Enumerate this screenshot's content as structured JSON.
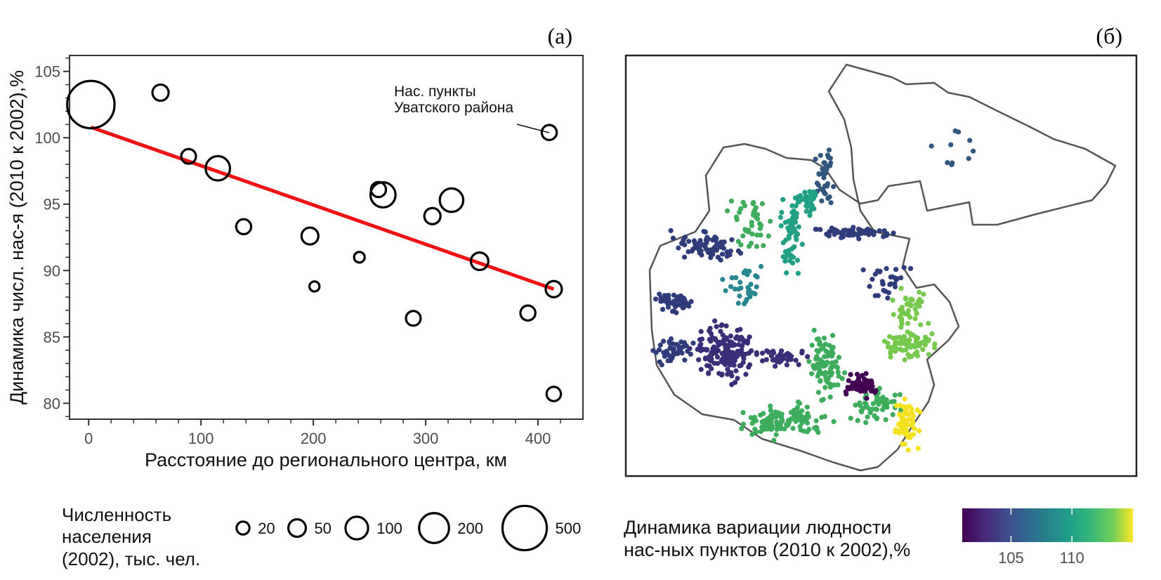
{
  "panel_a": {
    "tag": "(а)",
    "annotation": [
      "Нас. пункты",
      "Уватского района"
    ],
    "chart_data": {
      "type": "scatter",
      "xlabel": "Расстояние до регионального центра, км",
      "ylabel": "Динамика числ. нас-я (2010 к 2002),%",
      "xlim": [
        -17,
        440
      ],
      "ylim": [
        78.8,
        106.2
      ],
      "xticks": [
        0,
        100,
        200,
        300,
        400
      ],
      "yticks": [
        80,
        85,
        90,
        95,
        100,
        105
      ],
      "grid": false,
      "points": [
        {
          "x": 2,
          "y": 102.5,
          "pop": 580
        },
        {
          "x": 64,
          "y": 103.4,
          "pop": 40
        },
        {
          "x": 89,
          "y": 98.6,
          "pop": 30
        },
        {
          "x": 115,
          "y": 97.7,
          "pop": 120
        },
        {
          "x": 138,
          "y": 93.3,
          "pop": 32
        },
        {
          "x": 197,
          "y": 92.6,
          "pop": 45
        },
        {
          "x": 201,
          "y": 88.8,
          "pop": 8
        },
        {
          "x": 241,
          "y": 91.0,
          "pop": 10
        },
        {
          "x": 258,
          "y": 96.1,
          "pop": 32
        },
        {
          "x": 262,
          "y": 95.7,
          "pop": 130
        },
        {
          "x": 289,
          "y": 86.4,
          "pop": 30
        },
        {
          "x": 306,
          "y": 94.1,
          "pop": 40
        },
        {
          "x": 323,
          "y": 95.3,
          "pop": 110
        },
        {
          "x": 348,
          "y": 90.7,
          "pop": 50
        },
        {
          "x": 391,
          "y": 86.8,
          "pop": 32
        },
        {
          "x": 410,
          "y": 100.4,
          "pop": 32
        },
        {
          "x": 414,
          "y": 88.6,
          "pop": 40
        },
        {
          "x": 414,
          "y": 80.7,
          "pop": 28
        }
      ],
      "trend": {
        "x": [
          2,
          414
        ],
        "y": [
          100.8,
          88.6
        ],
        "color": "#ee1111"
      }
    }
  },
  "panel_b": {
    "tag": "(б)",
    "colorbar_ticks": [
      105,
      110
    ],
    "colorbar_range": [
      101,
      115
    ]
  },
  "legend_size": {
    "title": [
      "Численность",
      "населения",
      "(2002), тыс. чел."
    ],
    "entries": [
      {
        "label": "20",
        "pop": 20
      },
      {
        "label": "50",
        "pop": 50
      },
      {
        "label": "100",
        "pop": 100
      },
      {
        "label": "200",
        "pop": 200
      },
      {
        "label": "500",
        "pop": 500
      }
    ]
  },
  "legend_color": {
    "title": [
      "Динамика вариации людности",
      "нас-ных пунктов (2010 к 2002),%"
    ]
  }
}
